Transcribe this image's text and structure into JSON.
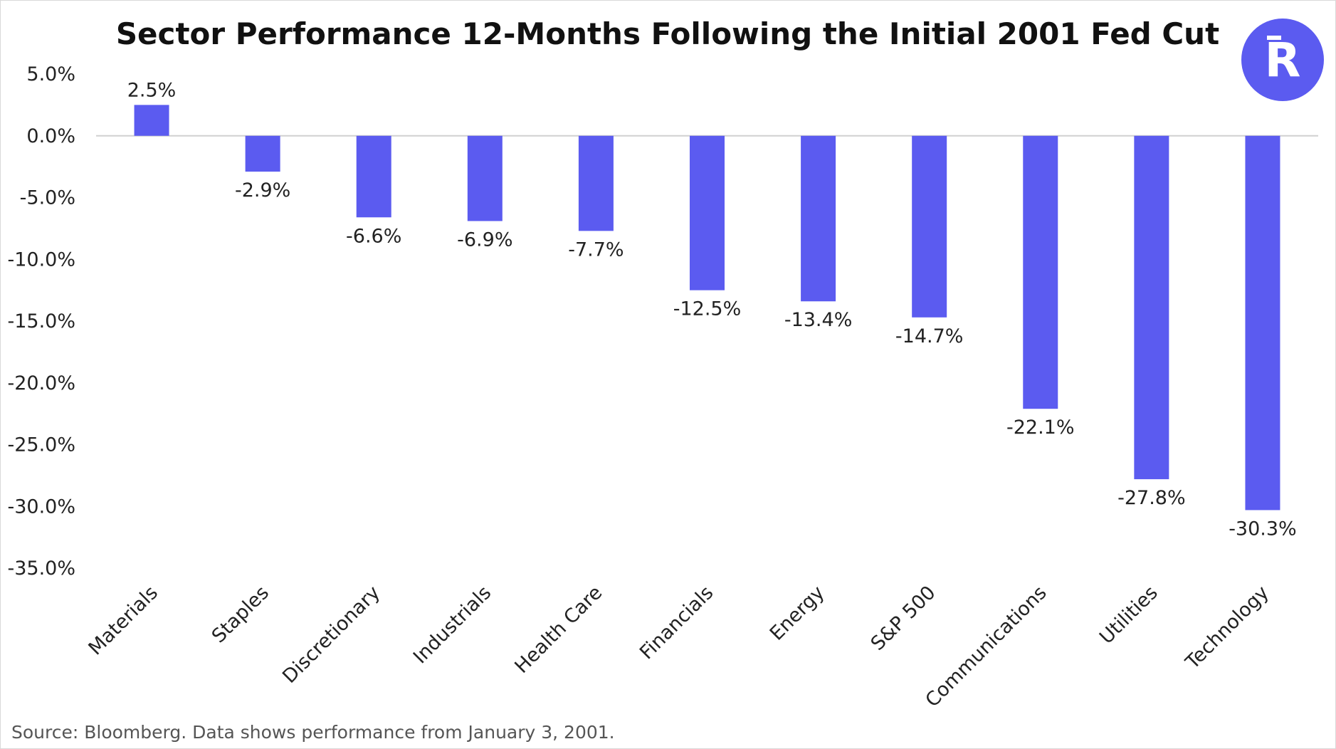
{
  "colors": {
    "bar": "#5b5bf0",
    "logo_bg": "#5b5bf0",
    "logo_fg": "#ffffff",
    "zero_line": "#d0d0d0",
    "text": "#222222"
  },
  "logo": {
    "icon": "r-logo-icon",
    "letter": "R"
  },
  "source_note": "Source: Bloomberg. Data shows performance from January 3, 2001.",
  "chart_data": {
    "type": "bar",
    "title": "Sector Performance 12-Months Following the Initial 2001 Fed Cut",
    "xlabel": "",
    "ylabel": "",
    "categories": [
      "Materials",
      "Staples",
      "Discretionary",
      "Industrials",
      "Health Care",
      "Financials",
      "Energy",
      "S&P 500",
      "Communications",
      "Utilities",
      "Technology"
    ],
    "values": [
      2.5,
      -2.9,
      -6.6,
      -6.9,
      -7.7,
      -12.5,
      -13.4,
      -14.7,
      -22.1,
      -27.8,
      -30.3
    ],
    "data_labels": [
      "2.5%",
      "-2.9%",
      "-6.6%",
      "-6.9%",
      "-7.7%",
      "-12.5%",
      "-13.4%",
      "-14.7%",
      "-22.1%",
      "-27.8%",
      "-30.3%"
    ],
    "ylim": [
      -35,
      5
    ],
    "yticks": [
      5,
      0,
      -5,
      -10,
      -15,
      -20,
      -25,
      -30,
      -35
    ],
    "ytick_labels": [
      "5.0%",
      "0.0%",
      "-5.0%",
      "-10.0%",
      "-15.0%",
      "-20.0%",
      "-25.0%",
      "-30.0%",
      "-35.0%"
    ],
    "grid": false,
    "legend": "none"
  }
}
